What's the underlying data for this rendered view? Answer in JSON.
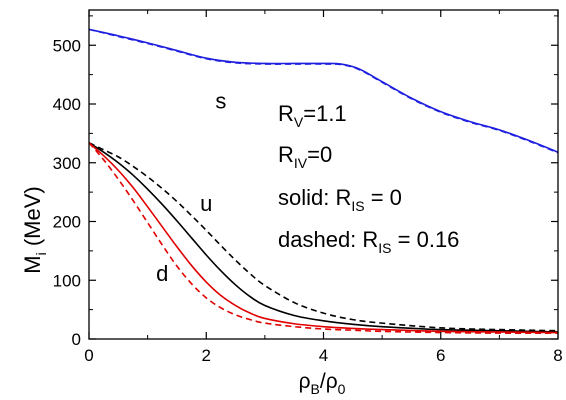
{
  "chart_data": {
    "type": "line",
    "xlabel": {
      "main": "ρ",
      "sub1": "B",
      "slash": "/ρ",
      "sub2": "0"
    },
    "ylabel": {
      "main": "M",
      "sub": "i",
      "rest": " (MeV)"
    },
    "xlim": [
      0,
      8
    ],
    "ylim": [
      0,
      560
    ],
    "xticks": [
      0,
      2,
      4,
      6,
      8
    ],
    "yticks": [
      0,
      100,
      200,
      300,
      400,
      500
    ],
    "grid": false,
    "colors": {
      "s": "#1f1fe0",
      "u": "#000000",
      "d": "#e00000"
    },
    "series": [
      {
        "name": "s",
        "style": "solid",
        "color": "#1f1fe0",
        "x": [
          0,
          0.5,
          1,
          1.5,
          2,
          2.5,
          3,
          3.5,
          4,
          4.3,
          4.6,
          5,
          5.5,
          6,
          6.5,
          7,
          7.5,
          8
        ],
        "y": [
          527,
          516,
          504,
          491,
          478,
          471,
          469,
          469,
          469,
          468,
          460,
          438,
          410,
          387,
          370,
          356,
          338,
          318
        ]
      },
      {
        "name": "s",
        "style": "dashed",
        "color": "#1f1fe0",
        "x": [
          0,
          0.5,
          1,
          1.5,
          2,
          2.5,
          3,
          3.5,
          4,
          4.3,
          4.6,
          5,
          5.5,
          6,
          6.5,
          7,
          7.5,
          8
        ],
        "y": [
          527,
          515,
          503,
          490,
          477,
          470,
          468,
          468,
          468,
          467,
          459,
          437,
          409,
          386,
          369,
          355,
          337,
          317
        ]
      },
      {
        "name": "u",
        "style": "solid",
        "color": "#000000",
        "x": [
          0,
          0.25,
          0.5,
          0.75,
          1,
          1.25,
          1.5,
          1.75,
          2,
          2.25,
          2.5,
          2.75,
          3,
          3.5,
          4,
          4.5,
          5,
          6,
          7,
          8
        ],
        "y": [
          334,
          318,
          300,
          279,
          255,
          229,
          201,
          172,
          143,
          116,
          92,
          72,
          57,
          40,
          31,
          25,
          21,
          16,
          14,
          12
        ]
      },
      {
        "name": "u",
        "style": "dashed",
        "color": "#000000",
        "x": [
          0,
          0.25,
          0.5,
          0.75,
          1,
          1.25,
          1.5,
          1.75,
          2,
          2.25,
          2.5,
          2.75,
          3,
          3.5,
          4,
          4.5,
          5,
          6,
          7,
          8
        ],
        "y": [
          334,
          322,
          310,
          294,
          276,
          256,
          234,
          210,
          185,
          159,
          134,
          111,
          91,
          62,
          44,
          33,
          27,
          19,
          16,
          14
        ]
      },
      {
        "name": "d",
        "style": "solid",
        "color": "#e00000",
        "x": [
          0,
          0.25,
          0.5,
          0.75,
          1,
          1.25,
          1.5,
          1.75,
          2,
          2.25,
          2.5,
          2.75,
          3,
          3.5,
          4,
          4.5,
          5,
          6,
          7,
          8
        ],
        "y": [
          334,
          312,
          287,
          258,
          225,
          191,
          157,
          125,
          97,
          74,
          57,
          44,
          35,
          26,
          21,
          18,
          16,
          13,
          12,
          11
        ]
      },
      {
        "name": "d",
        "style": "dashed",
        "color": "#e00000",
        "x": [
          0,
          0.25,
          0.5,
          0.75,
          1,
          1.25,
          1.5,
          1.75,
          2,
          2.25,
          2.5,
          2.75,
          3,
          3.5,
          4,
          4.5,
          5,
          6,
          7,
          8
        ],
        "y": [
          334,
          305,
          272,
          236,
          198,
          160,
          124,
          94,
          70,
          53,
          41,
          33,
          27,
          21,
          17,
          15,
          13,
          11,
          10,
          10
        ]
      }
    ],
    "curve_labels": [
      {
        "text": "s",
        "x": 2.25,
        "y": 392
      },
      {
        "text": "u",
        "x": 2.0,
        "y": 218
      },
      {
        "text": "d",
        "x": 1.25,
        "y": 99
      }
    ],
    "annotations": {
      "line1": {
        "main": "R",
        "sub": "V",
        "rest": "=1.1"
      },
      "line2": {
        "main": "R",
        "sub": "IV",
        "rest": "=0"
      },
      "line3": {
        "main": "solid: R",
        "sub": "IS",
        "rest": " = 0"
      },
      "line4": {
        "main": "dashed: R",
        "sub": "IS",
        "rest": " = 0.16"
      }
    }
  }
}
